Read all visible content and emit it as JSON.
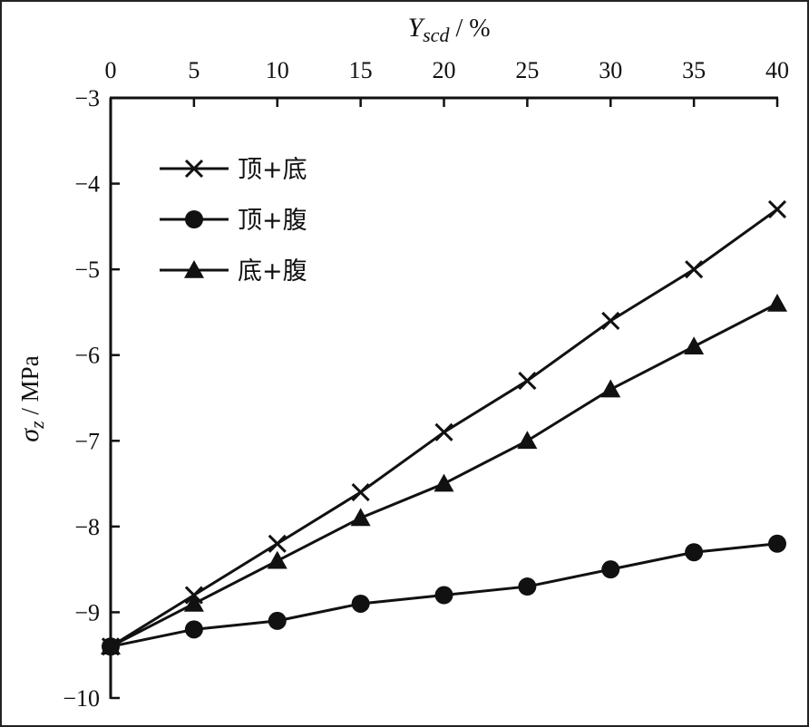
{
  "chart_data": {
    "type": "line",
    "xlabel": "Y",
    "xlabel_sub": "scd",
    "xlabel_unit": " / %",
    "ylabel": "σ",
    "ylabel_sub": "z",
    "ylabel_unit": " / MPa",
    "x_axis_position": "top",
    "xlim": [
      0,
      40
    ],
    "ylim": [
      -10,
      -3
    ],
    "x_ticks": [
      "0",
      "5",
      "10",
      "15",
      "20",
      "25",
      "30",
      "35",
      "40"
    ],
    "y_ticks": [
      "−3",
      "−4",
      "−5",
      "−6",
      "−7",
      "−8",
      "−9",
      "−10"
    ],
    "x": [
      0,
      5,
      10,
      15,
      20,
      25,
      30,
      35,
      40
    ],
    "grid": false,
    "legend_position": "top-left",
    "series": [
      {
        "name": "顶+底",
        "marker": "x",
        "values": [
          -9.4,
          -8.8,
          -8.2,
          -7.6,
          -6.9,
          -6.3,
          -5.6,
          -5.0,
          -4.3
        ]
      },
      {
        "name": "顶+腹",
        "marker": "circle",
        "values": [
          -9.4,
          -9.2,
          -9.1,
          -8.9,
          -8.8,
          -8.7,
          -8.5,
          -8.3,
          -8.2
        ]
      },
      {
        "name": "底+腹",
        "marker": "triangle",
        "values": [
          -9.4,
          -8.9,
          -8.4,
          -7.9,
          -7.5,
          -7.0,
          -6.4,
          -5.9,
          -5.4
        ]
      }
    ]
  }
}
